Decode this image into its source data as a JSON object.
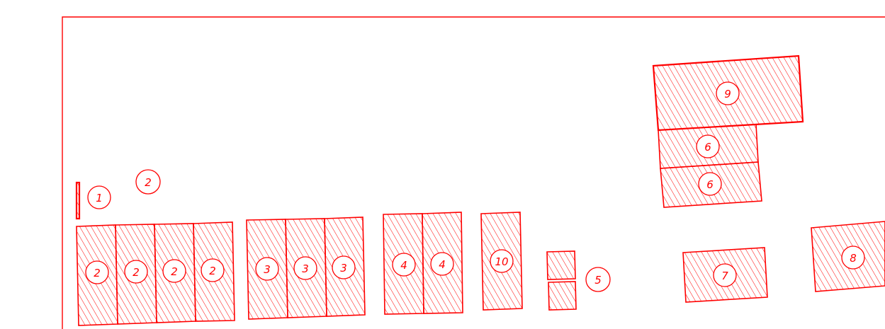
{
  "drawing": {
    "line_color": "#ff0000",
    "background": "#ffffff",
    "hatch": "diagonal-lines"
  },
  "parts": [
    {
      "id": "p1",
      "label": "1"
    },
    {
      "id": "p2-note",
      "label": "2"
    },
    {
      "id": "p2a",
      "label": "2"
    },
    {
      "id": "p2b",
      "label": "2"
    },
    {
      "id": "p2c",
      "label": "2"
    },
    {
      "id": "p2d",
      "label": "2"
    },
    {
      "id": "p3a",
      "label": "3"
    },
    {
      "id": "p3b",
      "label": "3"
    },
    {
      "id": "p3c",
      "label": "3"
    },
    {
      "id": "p4a",
      "label": "4"
    },
    {
      "id": "p4b",
      "label": "4"
    },
    {
      "id": "p10",
      "label": "10"
    },
    {
      "id": "p5",
      "label": "5"
    },
    {
      "id": "p9",
      "label": "9"
    },
    {
      "id": "p6a",
      "label": "6"
    },
    {
      "id": "p6b",
      "label": "6"
    },
    {
      "id": "p7",
      "label": "7"
    },
    {
      "id": "p8",
      "label": "8"
    }
  ]
}
